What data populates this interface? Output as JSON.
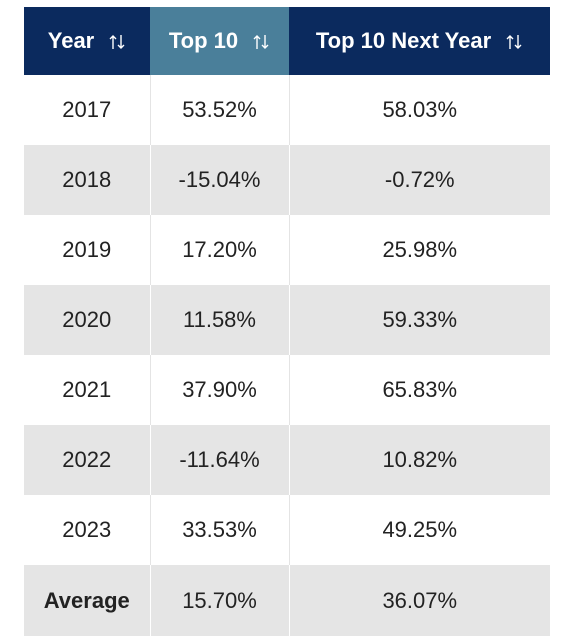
{
  "table": {
    "header": [
      "Year",
      "Top 10",
      "Top 10 Next Year"
    ],
    "rows": [
      [
        "2017",
        "53.52%",
        "58.03%"
      ],
      [
        "2018",
        "-15.04%",
        "-0.72%"
      ],
      [
        "2019",
        "17.20%",
        "25.98%"
      ],
      [
        "2020",
        "11.58%",
        "59.33%"
      ],
      [
        "2021",
        "37.90%",
        "65.83%"
      ],
      [
        "2022",
        "-11.64%",
        "10.82%"
      ],
      [
        "2023",
        "33.53%",
        "49.25%"
      ]
    ],
    "footer": [
      "Average",
      "15.70%",
      "36.07%"
    ]
  }
}
